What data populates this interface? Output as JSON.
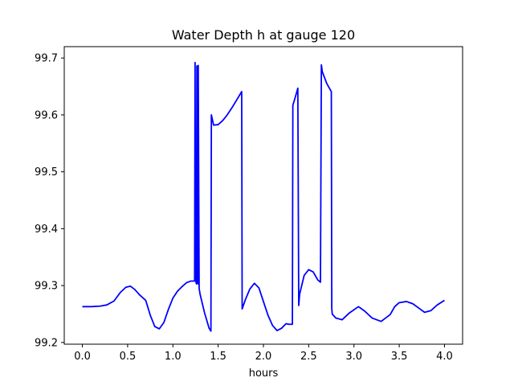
{
  "chart_data": {
    "type": "line",
    "title": "Water Depth h at gauge 120",
    "xlabel": "hours",
    "ylabel": "",
    "xlim": [
      -0.2,
      4.2
    ],
    "ylim": [
      99.197,
      99.72
    ],
    "xticks": [
      0.0,
      0.5,
      1.0,
      1.5,
      2.0,
      2.5,
      3.0,
      3.5,
      4.0
    ],
    "xtick_labels": [
      "0.0",
      "0.5",
      "1.0",
      "1.5",
      "2.0",
      "2.5",
      "3.0",
      "3.5",
      "4.0"
    ],
    "yticks": [
      99.2,
      99.3,
      99.4,
      99.5,
      99.6,
      99.7
    ],
    "ytick_labels": [
      "99.2",
      "99.3",
      "99.4",
      "99.5",
      "99.6",
      "99.7"
    ],
    "grid": false,
    "series": [
      {
        "color": "#0000ff",
        "x": [
          0.0,
          0.1,
          0.2,
          0.27,
          0.35,
          0.42,
          0.48,
          0.53,
          0.58,
          0.63,
          0.7,
          0.75,
          0.8,
          0.85,
          0.9,
          0.95,
          1.0,
          1.05,
          1.1,
          1.15,
          1.2,
          1.24,
          1.245,
          1.25,
          1.26,
          1.265,
          1.275,
          1.28,
          1.29,
          1.3,
          1.35,
          1.4,
          1.42,
          1.425,
          1.45,
          1.5,
          1.55,
          1.6,
          1.65,
          1.7,
          1.76,
          1.765,
          1.8,
          1.85,
          1.9,
          1.95,
          2.0,
          2.05,
          2.1,
          2.15,
          2.2,
          2.25,
          2.28,
          2.32,
          2.325,
          2.35,
          2.38,
          2.39,
          2.4,
          2.45,
          2.5,
          2.55,
          2.6,
          2.63,
          2.64,
          2.65,
          2.7,
          2.75,
          2.755,
          2.76,
          2.8,
          2.87,
          2.95,
          3.05,
          3.12,
          3.2,
          3.3,
          3.4,
          3.45,
          3.5,
          3.58,
          3.65,
          3.72,
          3.78,
          3.85,
          3.92,
          4.0
        ],
        "y": [
          99.263,
          99.263,
          99.264,
          99.266,
          99.273,
          99.288,
          99.297,
          99.299,
          99.293,
          99.284,
          99.274,
          99.248,
          99.228,
          99.224,
          99.235,
          99.258,
          99.278,
          99.29,
          99.298,
          99.305,
          99.308,
          99.308,
          99.692,
          99.31,
          99.303,
          99.686,
          99.303,
          99.687,
          99.295,
          99.285,
          99.252,
          99.225,
          99.22,
          99.6,
          99.582,
          99.583,
          99.59,
          99.6,
          99.612,
          99.625,
          99.641,
          99.259,
          99.275,
          99.294,
          99.304,
          99.296,
          99.272,
          99.248,
          99.23,
          99.221,
          99.225,
          99.233,
          99.232,
          99.232,
          99.617,
          99.63,
          99.647,
          99.265,
          99.285,
          99.318,
          99.328,
          99.324,
          99.31,
          99.306,
          99.688,
          99.676,
          99.655,
          99.641,
          99.26,
          99.25,
          99.243,
          99.24,
          99.252,
          99.263,
          99.255,
          99.243,
          99.237,
          99.249,
          99.263,
          99.27,
          99.272,
          99.268,
          99.26,
          99.253,
          99.256,
          99.266,
          99.274
        ]
      }
    ]
  }
}
